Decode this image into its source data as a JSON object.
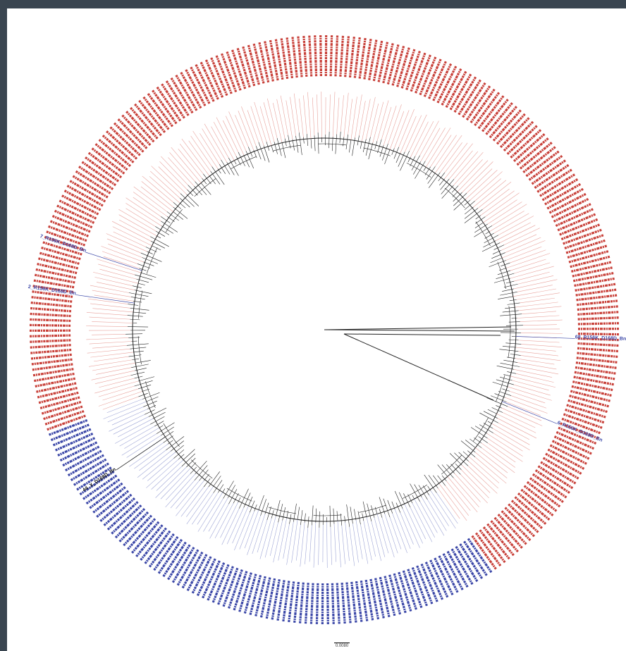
{
  "colors": {
    "frame": "#3a4550",
    "background": "#ffffff",
    "clade_red": "#c8413a",
    "clade_red_light": "#e8a29c",
    "clade_blue": "#3c48a8",
    "clade_blue_light": "#9fa6d6",
    "clade_black": "#111111",
    "branch": "#222222"
  },
  "tree": {
    "red_label_prefix": "R156K_D168D_",
    "blue_label_prefix": "R156K_D168D_",
    "highlight_labels": [
      {
        "text": "7_R156K_D168D_Bn",
        "color": "blue"
      },
      {
        "text": "2_R156K_D168D_Bn",
        "color": "blue"
      },
      {
        "text": "68_R156K_D168D_Bn",
        "color": "blue"
      },
      {
        "text": "6_R156K_D168D_Bn",
        "color": "blue"
      },
      {
        "text": "44_X_D168D_Bn",
        "color": "black"
      }
    ]
  },
  "scale": {
    "label": "0.0080"
  }
}
